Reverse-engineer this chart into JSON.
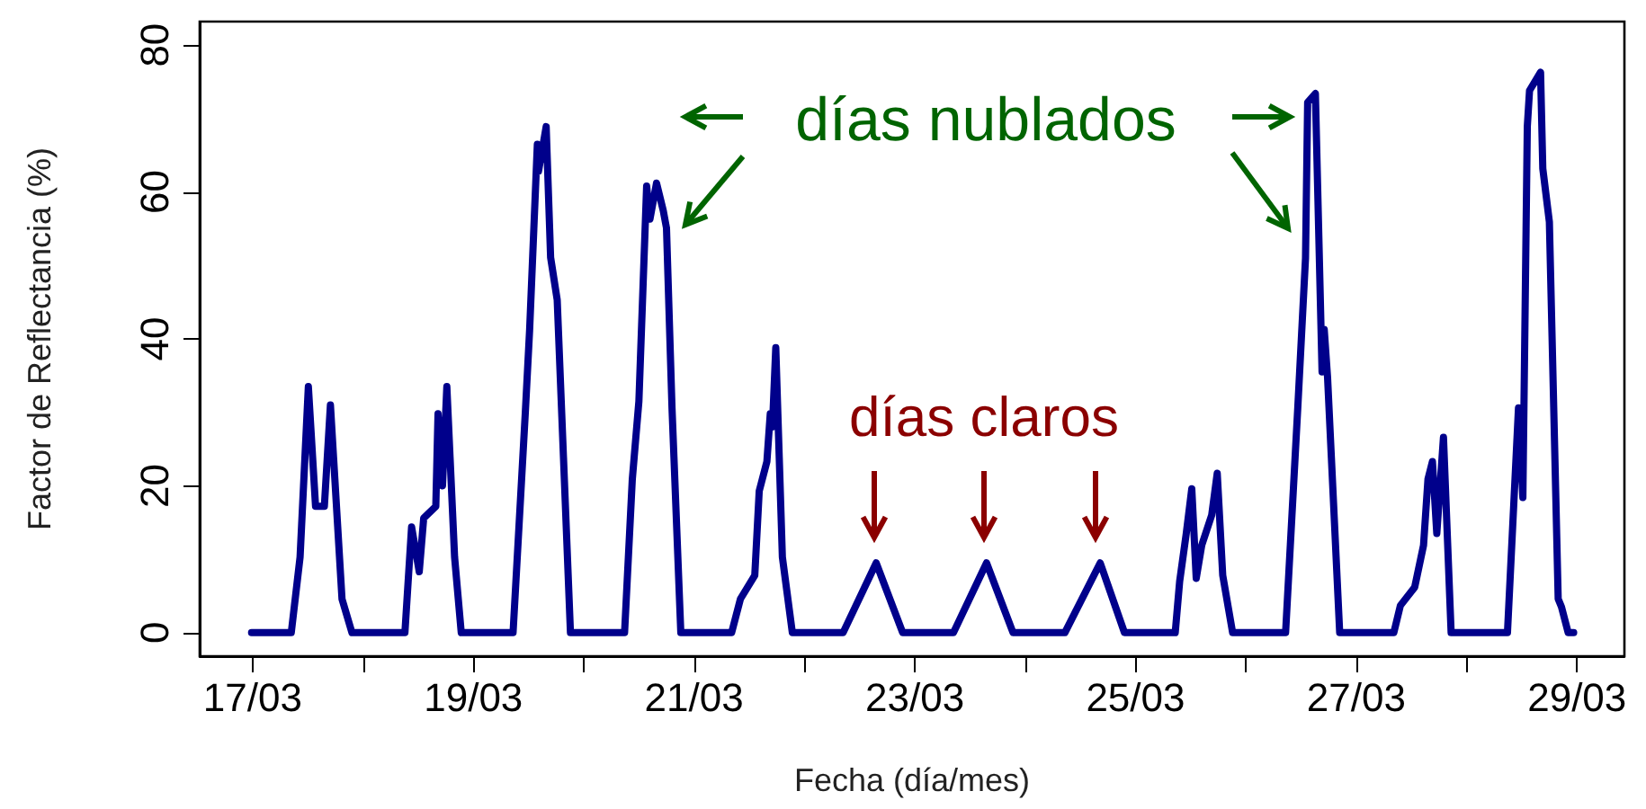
{
  "chart_data": {
    "type": "line",
    "xlabel": "Fecha (día/mes)",
    "ylabel": "Factor de Reflectancia (%)",
    "annotations": [
      "días nublados",
      "días claros"
    ],
    "x": [
      "--03-16T23:46",
      "--03-17T08:24",
      "--03-17T10:19",
      "--03-17T12:07",
      "--03-17T13:41",
      "--03-17T15:36",
      "--03-17T16:55",
      "--03-17T19:26",
      "--03-17T21:36",
      "--03-18T09:07",
      "--03-18T10:34",
      "--03-18T12:14",
      "--03-18T13:12",
      "--03-18T15:50",
      "--03-18T16:19",
      "--03-18T17:17",
      "--03-18T18:14",
      "--03-18T19:55",
      "--03-18T21:22",
      "--03-19T08:38",
      "--03-19T11:17",
      "--03-19T12:14",
      "--03-19T13:55",
      "--03-19T14:10",
      "--03-19T15:50",
      "--03-19T16:48",
      "--03-19T18:14",
      "--03-19T21:07",
      "--03-20T08:53",
      "--03-20T10:34",
      "--03-20T12:00",
      "--03-20T13:41",
      "--03-20T14:24",
      "--03-20T15:50",
      "--03-20T17:17",
      "--03-20T18:00",
      "--03-20T19:12",
      "--03-20T21:07",
      "--03-21T08:10",
      "--03-21T10:05",
      "--03-21T13:12",
      "--03-21T14:10",
      "--03-21T15:50",
      "--03-21T16:34",
      "--03-21T17:02",
      "--03-21T17:46",
      "--03-21T19:12",
      "--03-21T21:22",
      "--03-22T08:24",
      "--03-22T15:36",
      "--03-22T21:22",
      "--03-23T08:24",
      "--03-23T15:36",
      "--03-23T21:22",
      "--03-24T08:38",
      "--03-24T16:19",
      "--03-24T21:36",
      "--03-25T08:38",
      "--03-25T09:36",
      "--03-25T11:02",
      "--03-25T12:14",
      "--03-25T13:12",
      "--03-25T14:24",
      "--03-25T16:34",
      "--03-25T17:46",
      "--03-25T18:58",
      "--03-25T21:07",
      "--03-26T08:38",
      "--03-26T11:17",
      "--03-26T12:58",
      "--03-26T13:26",
      "--03-26T15:07",
      "--03-26T16:34",
      "--03-26T17:02",
      "--03-26T17:46",
      "--03-26T20:24",
      "--03-27T08:10",
      "--03-27T09:36",
      "--03-27T12:43",
      "--03-27T14:38",
      "--03-27T15:36",
      "--03-27T16:34",
      "--03-27T17:31",
      "--03-27T18:58",
      "--03-27T20:38",
      "--03-28T08:53",
      "--03-28T11:17",
      "--03-28T12:14",
      "--03-28T13:12",
      "--03-28T13:41",
      "--03-28T16:05",
      "--03-28T16:34",
      "--03-28T18:00",
      "--03-28T19:55",
      "--03-28T20:38",
      "--03-28T22:05",
      "--03-28T23:17"
    ],
    "series": [
      {
        "color": "#00008b",
        "values": [
          0,
          0,
          10.3,
          33.5,
          17.2,
          17.2,
          31,
          4.6,
          0,
          0,
          14.4,
          8.3,
          15.6,
          17.2,
          29.8,
          20,
          33.5,
          10.3,
          0,
          0,
          29.8,
          41.2,
          66.5,
          62.8,
          68.9,
          51.1,
          45.3,
          0,
          0,
          20.9,
          31.5,
          60.8,
          56.3,
          61.2,
          57.5,
          55.1,
          30.6,
          0,
          0,
          4.6,
          7.8,
          19.3,
          23.3,
          29.8,
          28,
          38.8,
          10.3,
          0,
          0,
          9.5,
          0,
          0,
          9.5,
          0,
          0,
          9.5,
          0,
          0,
          7,
          13.5,
          19.6,
          7.4,
          11.9,
          16,
          21.7,
          7.8,
          0,
          0,
          30.6,
          51,
          72.2,
          73.4,
          35.5,
          41.3,
          34.7,
          0,
          0,
          3.7,
          6.2,
          11.9,
          20.9,
          23.3,
          13.5,
          26.6,
          0,
          0,
          30.6,
          18.4,
          68.9,
          73.8,
          76.3,
          63.2,
          55.9,
          4.6,
          3.5,
          0,
          0
        ]
      }
    ],
    "xlim": [
      "--03-16T12:29",
      "--03-29T10:19"
    ],
    "ylim": [
      -3.2,
      83.2
    ],
    "xticks": [
      {
        "value": "--03-17",
        "label": "17/03"
      },
      {
        "value": "--03-18",
        "label": null
      },
      {
        "value": "--03-19",
        "label": "19/03"
      },
      {
        "value": "--03-20",
        "label": null
      },
      {
        "value": "--03-21",
        "label": "21/03"
      },
      {
        "value": "--03-22",
        "label": null
      },
      {
        "value": "--03-23",
        "label": "23/03"
      },
      {
        "value": "--03-24",
        "label": null
      },
      {
        "value": "--03-25",
        "label": "25/03"
      },
      {
        "value": "--03-26",
        "label": null
      },
      {
        "value": "--03-27",
        "label": "27/03"
      },
      {
        "value": "--03-28",
        "label": null
      },
      {
        "value": "--03-29",
        "label": "29/03"
      }
    ],
    "yticks": [
      0,
      20,
      40,
      60,
      80
    ],
    "grid": false,
    "legend": false,
    "marker": "none",
    "line_style": "solid"
  }
}
